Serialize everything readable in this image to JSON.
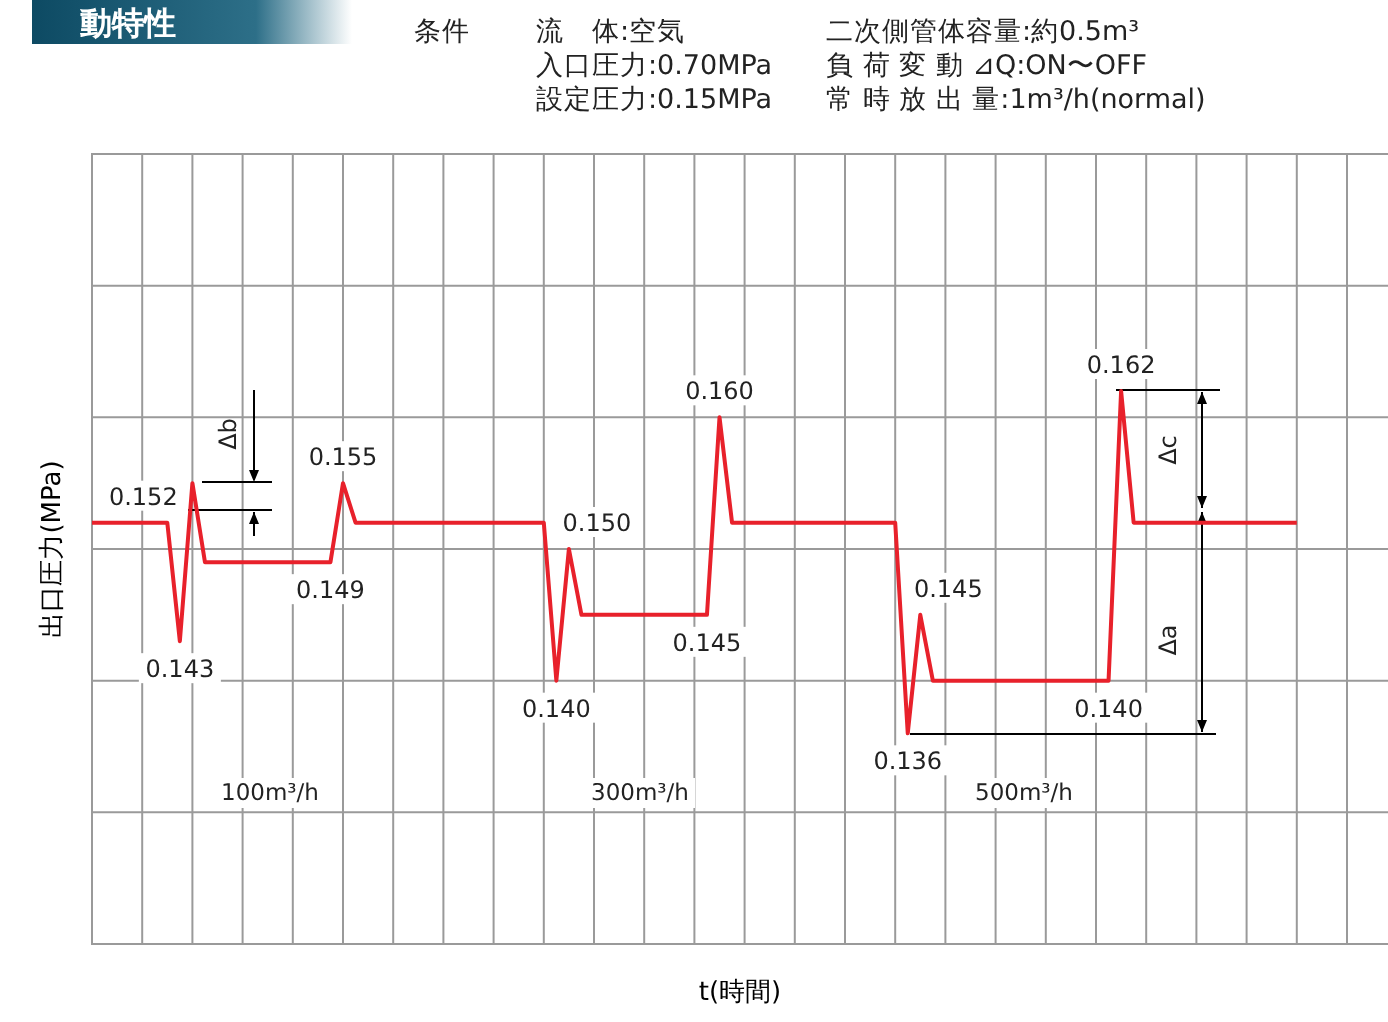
{
  "chart_data": {
    "type": "line",
    "title": "動特性",
    "xlabel": "t(時間)",
    "ylabel": "出口圧力(MPa)",
    "categories": [
      null,
      null,
      null,
      null,
      null,
      null,
      null,
      null,
      null,
      null,
      null,
      null,
      null,
      null,
      null,
      null,
      null,
      null,
      null,
      null,
      null,
      null,
      null,
      null,
      null,
      null,
      null,
      null,
      null,
      null,
      null,
      null,
      null,
      null,
      null,
      null,
      null,
      null,
      null,
      null,
      null,
      null,
      null,
      null,
      null,
      null,
      null,
      null,
      null,
      null,
      null,
      null,
      null,
      null,
      null,
      null,
      null,
      null,
      null,
      null,
      null,
      null,
      null,
      null,
      null,
      null,
      null,
      null,
      null,
      null,
      null,
      null,
      null,
      null,
      null,
      null,
      null,
      null,
      null,
      null,
      null,
      null,
      null,
      null,
      null,
      null,
      null,
      null,
      null,
      null,
      null,
      null,
      null,
      null,
      null,
      null,
      null
    ],
    "values": [
      0.152,
      0.152,
      0.152,
      0.152,
      0.152,
      0.152,
      0.152,
      0.143,
      0.155,
      0.149,
      0.149,
      0.149,
      0.149,
      0.149,
      0.149,
      0.149,
      0.149,
      0.149,
      0.149,
      0.149,
      0.155,
      0.152,
      0.152,
      0.152,
      0.152,
      0.152,
      0.152,
      0.152,
      0.152,
      0.152,
      0.152,
      0.152,
      0.152,
      0.152,
      0.152,
      0.152,
      0.152,
      0.14,
      0.15,
      0.145,
      0.145,
      0.145,
      0.145,
      0.145,
      0.145,
      0.145,
      0.145,
      0.145,
      0.145,
      0.145,
      0.16,
      0.152,
      0.152,
      0.152,
      0.152,
      0.152,
      0.152,
      0.152,
      0.152,
      0.152,
      0.152,
      0.152,
      0.152,
      0.152,
      0.152,
      0.136,
      0.145,
      0.14,
      0.14,
      0.14,
      0.14,
      0.14,
      0.14,
      0.14,
      0.14,
      0.14,
      0.14,
      0.14,
      0.14,
      0.14,
      0.14,
      0.14,
      0.162,
      0.152,
      0.152,
      0.152,
      0.152,
      0.152,
      0.152,
      0.152,
      0.152,
      0.152,
      0.152,
      0.152,
      0.152,
      0.152,
      0.152
    ],
    "value_labels": [
      null,
      null,
      null,
      null,
      null,
      null,
      "0.152",
      "0.143",
      null,
      null,
      null,
      null,
      null,
      null,
      null,
      null,
      null,
      null,
      null,
      "0.149",
      "0.155",
      null,
      null,
      null,
      null,
      null,
      null,
      null,
      null,
      null,
      null,
      null,
      null,
      null,
      null,
      null,
      null,
      "0.140",
      "0.150",
      null,
      null,
      null,
      null,
      null,
      null,
      null,
      null,
      null,
      null,
      "0.145",
      "0.160",
      null,
      null,
      null,
      null,
      null,
      null,
      null,
      null,
      null,
      null,
      null,
      null,
      null,
      null,
      "0.136",
      "0.145",
      null,
      null,
      null,
      null,
      null,
      null,
      null,
      null,
      null,
      null,
      null,
      null,
      null,
      null,
      "0.140",
      "0.162",
      null,
      null,
      null,
      null,
      null,
      null,
      null,
      null,
      null,
      null,
      null,
      null,
      null,
      null
    ],
    "color": "#e8212b",
    "ylim": [
      0.12,
      0.18
    ],
    "yticks": [
      {
        "value": 0.13,
        "label": null
      },
      {
        "value": 0.14,
        "label": null
      },
      {
        "value": 0.15,
        "label": null
      },
      {
        "value": 0.16,
        "label": null
      },
      {
        "value": 0.17,
        "label": null
      }
    ],
    "grid": true,
    "annotations": [
      "条件",
      "流　体:空気",
      "二次側管体容量:約0.5m³",
      "入口圧力:0.70MPa",
      "負 荷 変 動 ⊿Q:ON〜OFF",
      "設定圧力:0.15MPa",
      "常 時 放 出 量:1m³/h(normal)",
      "100m³/h",
      "300m³/h",
      "500m³/h",
      "Δb",
      "Δc",
      "Δa"
    ]
  }
}
